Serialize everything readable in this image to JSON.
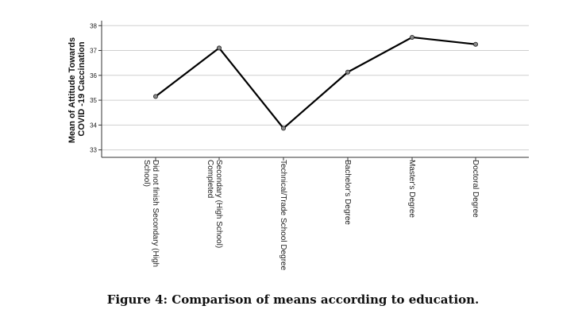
{
  "chart_data": {
    "type": "line",
    "title": "",
    "ylabel": [
      "Mean of Attitude Towards",
      "COVID -19 Caccination"
    ],
    "xlabel": "",
    "categories": [
      [
        "Did not finish Secondary (High",
        "School)"
      ],
      [
        "Secondary (High School)",
        "Completed"
      ],
      [
        "Technical/Trade School Degree"
      ],
      [
        "Bachelor's Degree"
      ],
      [
        "Master's Degree"
      ],
      [
        "Doctoral Degree"
      ]
    ],
    "values": [
      35.15,
      37.1,
      33.87,
      36.13,
      37.53,
      37.25
    ],
    "ylim": [
      32.7,
      38.2
    ],
    "yticks": [
      33,
      34,
      35,
      36,
      37,
      38
    ],
    "grid": true,
    "legend": "none",
    "line_color": "#000000",
    "marker_color": "#888888"
  },
  "caption": "Figure 4: Comparison of means according to education."
}
